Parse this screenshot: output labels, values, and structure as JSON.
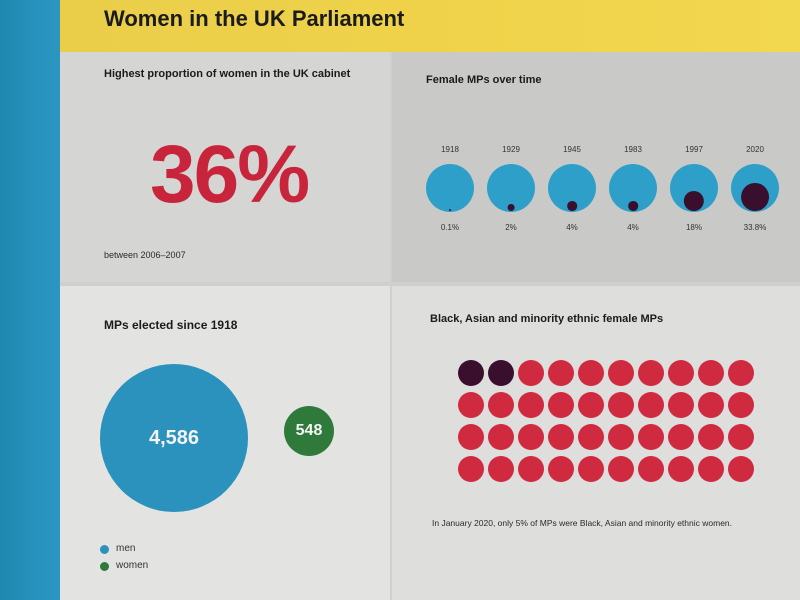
{
  "title": "Women in the UK Parliament",
  "cabinet": {
    "heading": "Highest proportion of women in the UK cabinet",
    "value": "36%",
    "period": "between 2006–2007"
  },
  "female_mps_over_time": {
    "heading": "Female MPs over time",
    "items": [
      {
        "year": "1918",
        "pct_label": "0.1%",
        "share": 0.001
      },
      {
        "year": "1929",
        "pct_label": "2%",
        "share": 0.02
      },
      {
        "year": "1945",
        "pct_label": "4%",
        "share": 0.04
      },
      {
        "year": "1983",
        "pct_label": "4%",
        "share": 0.04
      },
      {
        "year": "1997",
        "pct_label": "18%",
        "share": 0.18
      },
      {
        "year": "2020",
        "pct_label": "33.8%",
        "share": 0.338
      }
    ]
  },
  "mps_elected": {
    "heading": "MPs elected since 1918",
    "men_value": "4,586",
    "women_value": "548",
    "legend_men": "men",
    "legend_women": "women"
  },
  "bame": {
    "heading": "Black, Asian and minority ethnic female MPs",
    "total_dots": 40,
    "highlighted_dots": 2,
    "caption": "In January 2020, only 5% of MPs were Black, Asian and minority ethnic women."
  },
  "colors": {
    "yellow": "#f0d34a",
    "blue": "#2a92bd",
    "red": "#c8253d",
    "green": "#2f7a3a",
    "plum": "#3a0f2e"
  }
}
